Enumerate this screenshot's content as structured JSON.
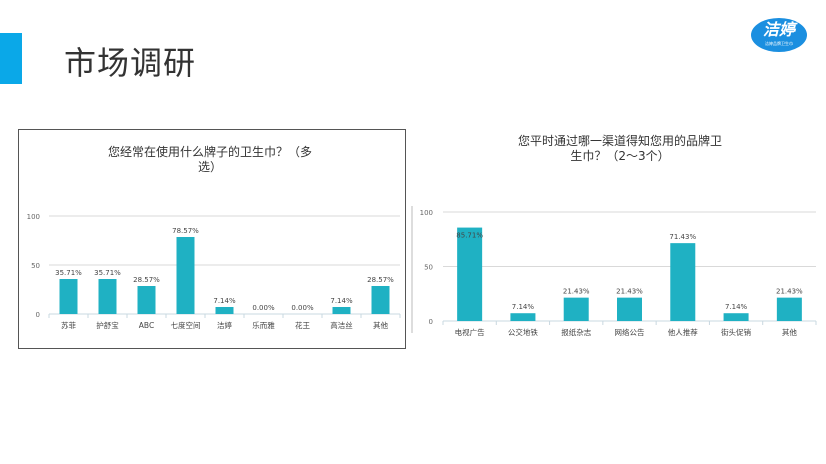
{
  "page": {
    "title": "市场调研",
    "logo": {
      "main": "洁婷",
      "sub": "洁婷品牌卫生巾"
    },
    "accent_color": "#0aa8e8"
  },
  "chart_data": [
    {
      "type": "bar",
      "title_line1": "您经常在使用什么牌子的卫生巾？（多",
      "title_line2": "选）",
      "title": "您经常在使用什么牌子的卫生巾？（多选）",
      "categories": [
        "苏菲",
        "护舒宝",
        "ABC",
        "七度空间",
        "洁婷",
        "乐而雅",
        "花王",
        "高洁丝",
        "其他"
      ],
      "values": [
        35.71,
        35.71,
        28.57,
        78.57,
        7.14,
        0.0,
        0.0,
        7.14,
        28.57
      ],
      "value_labels": [
        "35.71%",
        "35.71%",
        "28.57%",
        "78.57%",
        "7.14%",
        "0.00%",
        "0.00%",
        "7.14%",
        "28.57%"
      ],
      "yticks": [
        "0",
        "50",
        "100"
      ],
      "ylim": [
        0,
        100
      ],
      "xlabel": "",
      "ylabel": "",
      "grid": true,
      "bar_color": "#1fb1c3"
    },
    {
      "type": "bar",
      "title_line1": "您平时通过哪一渠道得知您用的品牌卫",
      "title_line2": "生巾？（2～3个）",
      "title": "您平时通过哪一渠道得知您用的品牌卫生巾？（2～3个）",
      "categories": [
        "电视广告",
        "公交地铁",
        "报纸杂志",
        "网络公告",
        "他人推荐",
        "街头促销",
        "其他"
      ],
      "values": [
        85.71,
        7.14,
        21.43,
        21.43,
        71.43,
        7.14,
        21.43
      ],
      "value_labels": [
        "85.71%",
        "7.14%",
        "21.43%",
        "21.43%",
        "71.43%",
        "7.14%",
        "21.43%"
      ],
      "yticks": [
        "0",
        "50",
        "100"
      ],
      "ylim": [
        0,
        100
      ],
      "xlabel": "",
      "ylabel": "",
      "grid": true,
      "bar_color": "#1fb1c3"
    }
  ]
}
